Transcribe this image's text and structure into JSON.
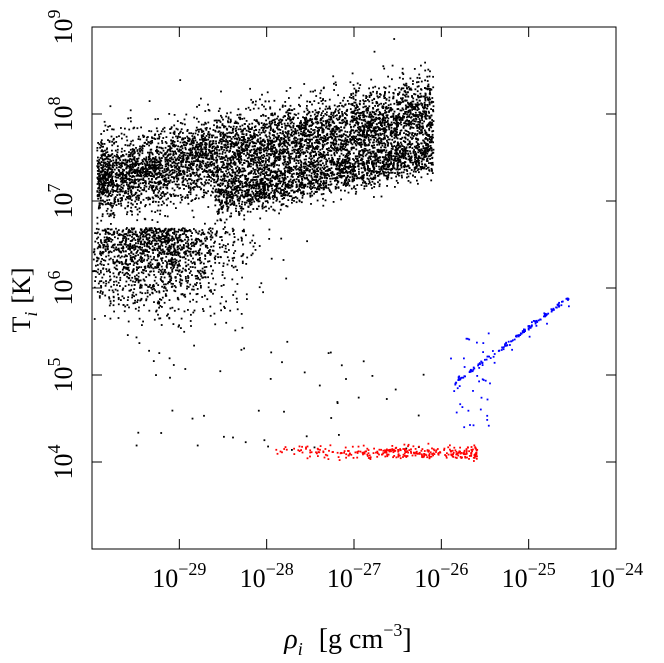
{
  "chart_data": {
    "type": "scatter",
    "title": "",
    "xlabel": {
      "symbol": "ρ",
      "subscript": "i",
      "units": "[g  cm",
      "units_exp": "−3",
      "units_close": "]"
    },
    "ylabel": {
      "symbol": "T",
      "subscript": "i",
      "units": "[K]"
    },
    "x_scale": "log",
    "y_scale": "log",
    "xlim_log10": [
      -30,
      -24
    ],
    "ylim_log10": [
      3,
      9
    ],
    "x_ticks": [
      {
        "base": "10",
        "exp": "−29",
        "log10": -29
      },
      {
        "base": "10",
        "exp": "−28",
        "log10": -28
      },
      {
        "base": "10",
        "exp": "−27",
        "log10": -27
      },
      {
        "base": "10",
        "exp": "−26",
        "log10": -26
      },
      {
        "base": "10",
        "exp": "−25",
        "log10": -25
      },
      {
        "base": "10",
        "exp": "−24",
        "log10": -24
      }
    ],
    "y_ticks": [
      {
        "base": "10",
        "exp": "4",
        "log10": 4
      },
      {
        "base": "10",
        "exp": "5",
        "log10": 5
      },
      {
        "base": "10",
        "exp": "6",
        "log10": 6
      },
      {
        "base": "10",
        "exp": "7",
        "log10": 7
      },
      {
        "base": "10",
        "exp": "8",
        "log10": 8
      },
      {
        "base": "10",
        "exp": "9",
        "log10": 9
      }
    ],
    "grid": false,
    "legend": "none",
    "series": [
      {
        "color": "#000000",
        "description_points_log10": [
          [
            -29.9,
            7.2
          ],
          [
            -29.7,
            7.4
          ],
          [
            -29.5,
            7.3
          ],
          [
            -29.3,
            7.5
          ],
          [
            -29.1,
            7.4
          ],
          [
            -28.9,
            7.6
          ],
          [
            -28.7,
            7.5
          ],
          [
            -28.5,
            7.7
          ],
          [
            -28.3,
            7.6
          ],
          [
            -28.1,
            7.8
          ],
          [
            -27.9,
            7.7
          ],
          [
            -27.7,
            7.9
          ],
          [
            -27.5,
            7.8
          ],
          [
            -27.3,
            7.9
          ],
          [
            -27.1,
            7.9
          ],
          [
            -26.9,
            8.0
          ],
          [
            -26.7,
            7.9
          ],
          [
            -26.5,
            8.0
          ],
          [
            -26.3,
            8.0
          ],
          [
            -26.1,
            8.1
          ],
          [
            -28.0,
            7.2
          ],
          [
            -27.5,
            7.3
          ],
          [
            -27.0,
            7.4
          ],
          [
            -26.5,
            7.5
          ],
          [
            -26.1,
            7.6
          ],
          [
            -29.4,
            6.8
          ],
          [
            -29.0,
            6.5
          ],
          [
            -28.6,
            6.3
          ],
          [
            -28.8,
            6.0
          ],
          [
            -29.2,
            5.9
          ],
          [
            -29.5,
            4.2
          ],
          [
            -28.8,
            4.2
          ],
          [
            -28.5,
            4.3
          ],
          [
            -28.1,
            4.6
          ],
          [
            -27.2,
            4.7
          ],
          [
            -26.8,
            5.0
          ],
          [
            -28.3,
            5.3
          ],
          [
            -29.8,
            8.1
          ],
          [
            -29.0,
            8.4
          ],
          [
            -28.2,
            8.3
          ]
        ]
      },
      {
        "color": "#ff0000",
        "description_points_log10": [
          [
            -27.9,
            4.15
          ],
          [
            -27.6,
            4.12
          ],
          [
            -27.4,
            4.15
          ],
          [
            -27.1,
            4.1
          ],
          [
            -26.9,
            4.12
          ],
          [
            -26.7,
            4.15
          ],
          [
            -26.5,
            4.1
          ],
          [
            -26.3,
            4.12
          ],
          [
            -26.1,
            4.11
          ],
          [
            -25.9,
            4.13
          ],
          [
            -25.75,
            4.1
          ],
          [
            -25.6,
            4.15
          ]
        ]
      },
      {
        "color": "#0000ff",
        "description_points_log10": [
          [
            -25.85,
            4.9
          ],
          [
            -25.6,
            5.0
          ],
          [
            -25.4,
            5.15
          ],
          [
            -25.2,
            5.3
          ],
          [
            -25.0,
            5.45
          ],
          [
            -24.8,
            5.6
          ],
          [
            -24.55,
            5.8
          ],
          [
            -25.9,
            5.2
          ],
          [
            -25.7,
            4.6
          ],
          [
            -25.55,
            4.75
          ]
        ]
      }
    ]
  }
}
